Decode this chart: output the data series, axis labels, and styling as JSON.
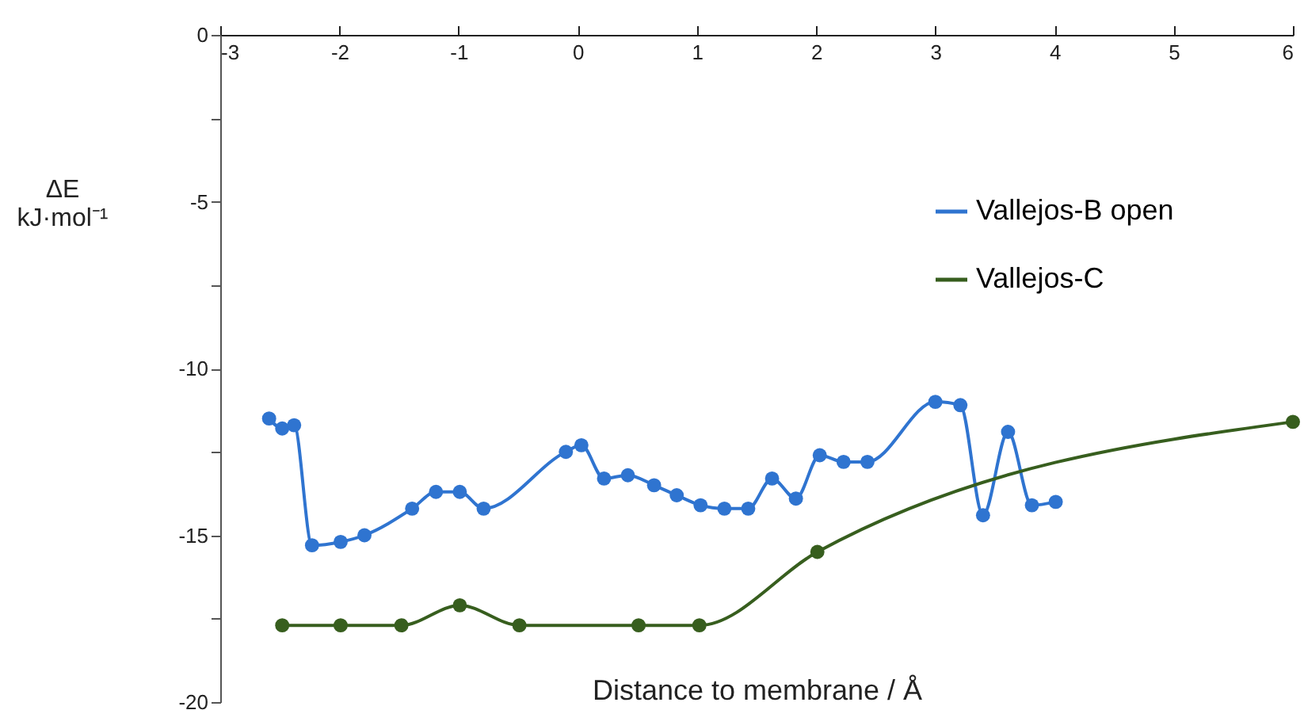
{
  "chart_data": {
    "type": "line",
    "xlabel": "Distance to membrane / Å",
    "ylabel": [
      "ΔE",
      "kJ·mol⁻¹"
    ],
    "xlim": [
      -3,
      6
    ],
    "xticks": [
      -3,
      -2,
      -1,
      0,
      1,
      2,
      3,
      4,
      5,
      6
    ],
    "ylim": [
      -20,
      0
    ],
    "yticks": [
      0,
      {
        "value": -2.5,
        "label": null
      },
      -5,
      {
        "value": -7.5,
        "label": null
      },
      -10,
      {
        "value": -12.5,
        "label": null
      },
      -15,
      {
        "value": -17.5,
        "label": null
      },
      -20
    ],
    "grid": false,
    "legend": "right",
    "marker": "circle",
    "line_style": "solid",
    "series": [
      {
        "name": "Vallejos-B open",
        "color": "#2f74d0",
        "x": [
          -2.59,
          -2.48,
          -2.38,
          -2.23,
          -1.99,
          -1.79,
          -1.39,
          -1.19,
          -0.99,
          -0.79,
          -0.1,
          0.03,
          0.22,
          0.42,
          0.64,
          0.83,
          1.03,
          1.23,
          1.43,
          1.63,
          1.83,
          2.03,
          2.23,
          2.43,
          3.0,
          3.21,
          3.4,
          3.61,
          3.81,
          4.01
        ],
        "values": [
          -11.5,
          -11.8,
          -11.7,
          -15.3,
          -15.2,
          -15.0,
          -14.2,
          -13.7,
          -13.7,
          -14.2,
          -12.5,
          -12.3,
          -13.3,
          -13.2,
          -13.5,
          -13.8,
          -14.1,
          -14.2,
          -14.2,
          -13.3,
          -13.9,
          -12.6,
          -12.8,
          -12.8,
          -11.0,
          -11.1,
          -14.4,
          -11.9,
          -14.1,
          -14.0
        ]
      },
      {
        "name": "Vallejos-C",
        "color": "#375e1e",
        "x": [
          -2.48,
          -1.99,
          -1.48,
          -0.99,
          -0.49,
          0.51,
          1.02,
          2.01,
          6.0
        ],
        "values": [
          -17.7,
          -17.7,
          -17.7,
          -17.1,
          -17.7,
          -17.7,
          -17.7,
          -15.5,
          -11.6
        ]
      }
    ]
  }
}
